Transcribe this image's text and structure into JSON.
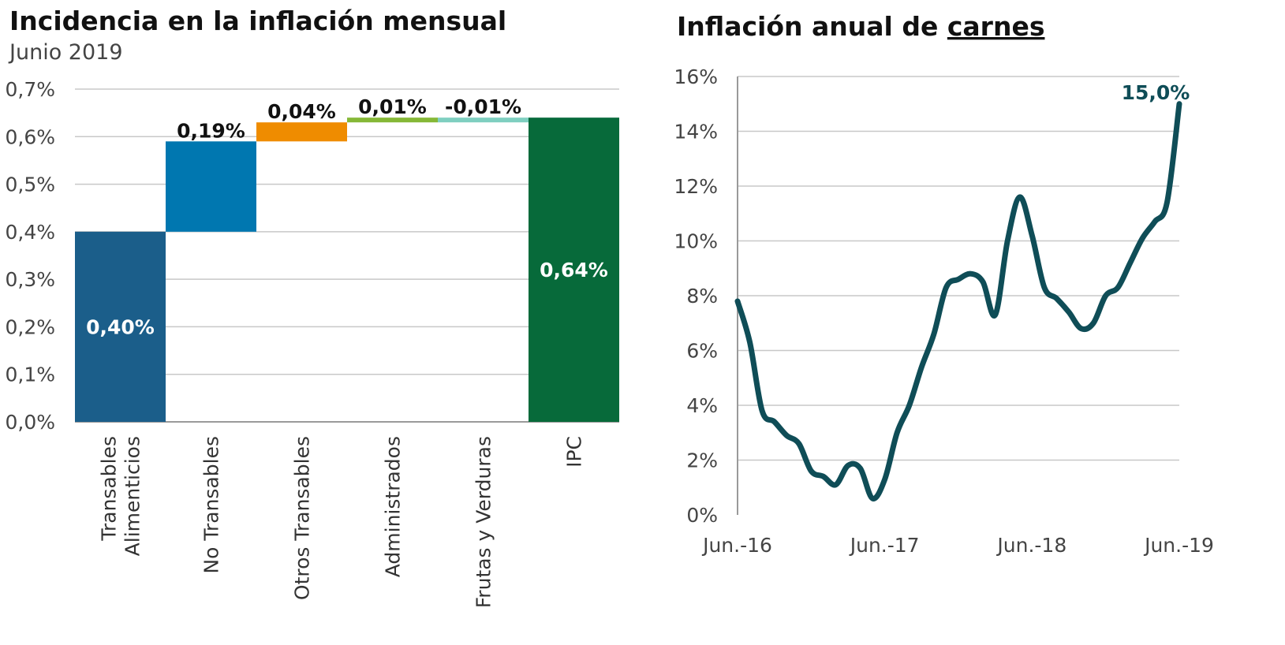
{
  "chart_data": [
    {
      "type": "bar",
      "subtype": "waterfall",
      "title": "Incidencia en la inflación mensual",
      "subtitle": "Junio 2019",
      "categories": [
        "Transables\nAlimenticios",
        "No Transables",
        "Otros Transables",
        "Administrados",
        "Frutas y Verduras",
        "IPC"
      ],
      "values": [
        0.4,
        0.19,
        0.04,
        0.01,
        -0.01,
        0.64
      ],
      "is_total": [
        false,
        false,
        false,
        false,
        false,
        true
      ],
      "data_labels": [
        "0,40%",
        "0,19%",
        "0,04%",
        "0,01%",
        "-0,01%",
        "0,64%"
      ],
      "colors": [
        "#1b5e8a",
        "#0077b0",
        "#ef8c00",
        "#86b837",
        "#7fcfc0",
        "#076a3a"
      ],
      "ylim": [
        0,
        0.7
      ],
      "yticks": [
        0,
        0.1,
        0.2,
        0.3,
        0.4,
        0.5,
        0.6,
        0.7
      ],
      "ytick_labels": [
        "0,0%",
        "0,1%",
        "0,2%",
        "0,3%",
        "0,4%",
        "0,5%",
        "0,6%",
        "0,7%"
      ],
      "grid": true,
      "legend": "none"
    },
    {
      "type": "line",
      "title_prefix": "Inflación anual de ",
      "title_emphasis": "carnes",
      "x_labels": [
        "Jun.-16",
        "Jun.-17",
        "Jun.-18",
        "Jun.-19"
      ],
      "x_range": [
        "2016-06",
        "2019-06"
      ],
      "series": [
        {
          "x": [
            "2016-06",
            "2016-07",
            "2016-08",
            "2016-09",
            "2016-10",
            "2016-11",
            "2016-12",
            "2017-01",
            "2017-02",
            "2017-03",
            "2017-04",
            "2017-05",
            "2017-06",
            "2017-07",
            "2017-08",
            "2017-09",
            "2017-10",
            "2017-11",
            "2017-12",
            "2018-01",
            "2018-02",
            "2018-03",
            "2018-04",
            "2018-05",
            "2018-06",
            "2018-07",
            "2018-08",
            "2018-09",
            "2018-10",
            "2018-11",
            "2018-12",
            "2019-01",
            "2019-02",
            "2019-03",
            "2019-04",
            "2019-05",
            "2019-06"
          ],
          "values": [
            7.8,
            6.3,
            3.8,
            3.4,
            2.9,
            2.6,
            1.6,
            1.4,
            1.1,
            1.8,
            1.7,
            0.6,
            1.3,
            3.0,
            4.0,
            5.4,
            6.6,
            8.3,
            8.6,
            8.8,
            8.5,
            7.3,
            10.0,
            11.6,
            10.2,
            8.3,
            7.9,
            7.4,
            6.8,
            7.0,
            8.0,
            8.3,
            9.2,
            10.1,
            10.7,
            11.4,
            15.0
          ],
          "color": "#0f4d57"
        }
      ],
      "end_label": "15,0%",
      "ylim": [
        0,
        16
      ],
      "yticks": [
        0,
        2,
        4,
        6,
        8,
        10,
        12,
        14,
        16
      ],
      "ytick_labels": [
        "0%",
        "2%",
        "4%",
        "6%",
        "8%",
        "10%",
        "12%",
        "14%",
        "16%"
      ],
      "grid": true,
      "legend": "none"
    }
  ]
}
